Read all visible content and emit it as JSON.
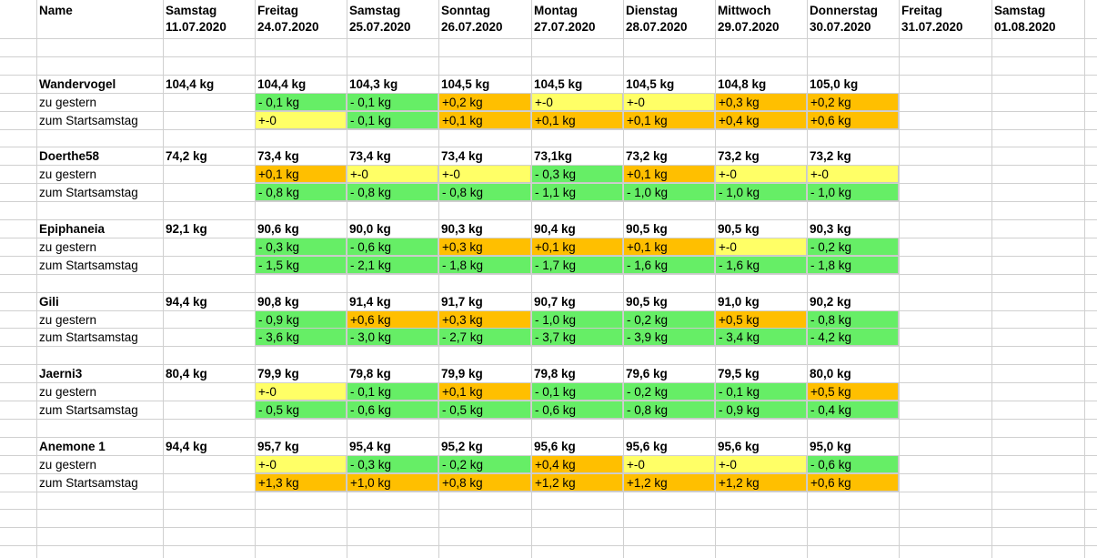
{
  "colors": {
    "green": "#66ee66",
    "orange": "#ffbf00",
    "yellow": "#ffff66",
    "gridline": "#d0d0d0"
  },
  "header": {
    "name_label": "Name",
    "days": [
      {
        "day": "Samstag",
        "date": "11.07.2020"
      },
      {
        "day": "Freitag",
        "date": "24.07.2020"
      },
      {
        "day": "Samstag",
        "date": "25.07.2020"
      },
      {
        "day": "Sonntag",
        "date": "26.07.2020"
      },
      {
        "day": "Montag",
        "date": "27.07.2020"
      },
      {
        "day": "Dienstag",
        "date": "28.07.2020"
      },
      {
        "day": "Mittwoch",
        "date": "29.07.2020"
      },
      {
        "day": "Donnerstag",
        "date": "30.07.2020"
      },
      {
        "day": "Freitag",
        "date": "31.07.2020"
      },
      {
        "day": "Samstag",
        "date": "01.08.2020"
      }
    ]
  },
  "rows": [
    {
      "type": "empty"
    },
    {
      "type": "empty"
    },
    {
      "type": "weight",
      "label": "Wandervogel",
      "cells": [
        "104,4 kg",
        "104,4 kg",
        "104,3 kg",
        "104,5 kg",
        "104,5 kg",
        "104,5 kg",
        "104,8 kg",
        "105,0 kg",
        "",
        ""
      ]
    },
    {
      "type": "delta",
      "label": "zu gestern",
      "cells": [
        "",
        "- 0,1 kg",
        "- 0,1 kg",
        "+0,2 kg",
        "+-0",
        "+-0",
        "+0,3 kg",
        "+0,2 kg",
        "",
        ""
      ],
      "fills": [
        "",
        "green",
        "green",
        "orange",
        "yellow",
        "yellow",
        "orange",
        "orange",
        "",
        ""
      ]
    },
    {
      "type": "delta",
      "label": "zum Startsamstag",
      "cells": [
        "",
        "+-0",
        "- 0,1 kg",
        "+0,1 kg",
        "+0,1 kg",
        "+0,1 kg",
        "+0,4 kg",
        "+0,6 kg",
        "",
        ""
      ],
      "fills": [
        "",
        "yellow",
        "green",
        "orange",
        "orange",
        "orange",
        "orange",
        "orange",
        "",
        ""
      ]
    },
    {
      "type": "empty"
    },
    {
      "type": "weight",
      "label": "Doerthe58",
      "cells": [
        "74,2 kg",
        "73,4 kg",
        "73,4 kg",
        " 73,4 kg",
        "73,1kg",
        "73,2 kg",
        "73,2 kg",
        "73,2 kg",
        "",
        ""
      ]
    },
    {
      "type": "delta",
      "label": "zu gestern",
      "cells": [
        "",
        "+0,1 kg",
        "+-0",
        "+-0",
        "- 0,3  kg",
        "+0,1 kg",
        "+-0",
        "+-0",
        "",
        ""
      ],
      "fills": [
        "",
        "orange",
        "yellow",
        "yellow",
        "green",
        "orange",
        "yellow",
        "yellow",
        "",
        ""
      ]
    },
    {
      "type": "delta",
      "label": "zum Startsamstag",
      "cells": [
        "",
        "- 0,8 kg",
        "- 0,8 kg",
        "- 0,8 kg",
        "- 1,1  kg",
        "- 1,0 kg",
        "- 1,0 kg",
        "- 1,0 kg",
        "",
        ""
      ],
      "fills": [
        "",
        "green",
        "green",
        "green",
        "green",
        "green",
        "green",
        "green",
        "",
        ""
      ]
    },
    {
      "type": "empty"
    },
    {
      "type": "weight",
      "label": "Epiphaneia",
      "cells": [
        "92,1 kg",
        "90,6 kg",
        "90,0 kg",
        " 90,3 kg",
        "90,4 kg",
        "90,5 kg",
        "90,5 kg",
        "90,3 kg",
        "",
        ""
      ]
    },
    {
      "type": "delta",
      "label": "zu gestern",
      "cells": [
        "",
        "- 0,3 kg",
        "- 0,6 kg",
        "+0,3 kg",
        "+0,1 kg",
        "+0,1 kg",
        "+-0",
        "- 0,2 kg",
        "",
        ""
      ],
      "fills": [
        "",
        "green",
        "green",
        "orange",
        "orange",
        "orange",
        "yellow",
        "green",
        "",
        ""
      ]
    },
    {
      "type": "delta",
      "label": "zum Startsamstag",
      "cells": [
        "",
        "- 1,5 kg",
        "- 2,1 kg",
        "- 1,8 kg",
        "- 1,7 kg",
        "- 1,6 kg",
        "- 1,6 kg",
        "- 1,8 kg",
        "",
        ""
      ],
      "fills": [
        "",
        "green",
        "green",
        "green",
        "green",
        "green",
        "green",
        "green",
        "",
        ""
      ]
    },
    {
      "type": "empty"
    },
    {
      "type": "weight",
      "label": "Gili",
      "cells": [
        "94,4 kg",
        "90,8 kg",
        "91,4 kg",
        " 91,7 kg",
        "90,7 kg",
        "90,5 kg",
        "91,0 kg",
        "90,2 kg",
        "",
        ""
      ]
    },
    {
      "type": "delta",
      "label": "zu gestern",
      "cells": [
        "",
        "- 0,9 kg",
        "+0,6 kg",
        "+0,3 kg",
        "- 1,0 kg",
        "- 0,2 kg",
        "+0,5 kg",
        "- 0,8 kg",
        "",
        ""
      ],
      "fills": [
        "",
        "green",
        "orange",
        "orange",
        "green",
        "green",
        "orange",
        "green",
        "",
        ""
      ]
    },
    {
      "type": "delta",
      "label": "zum Startsamstag",
      "cells": [
        "",
        "- 3,6 kg",
        "- 3,0 kg",
        "- 2,7 kg",
        "- 3,7 kg",
        "- 3,9 kg",
        "- 3,4 kg",
        "- 4,2 kg",
        "",
        ""
      ],
      "fills": [
        "",
        "green",
        "green",
        "green",
        "green",
        "green",
        "green",
        "green",
        "",
        ""
      ]
    },
    {
      "type": "empty"
    },
    {
      "type": "weight",
      "label": "Jaerni3",
      "cells": [
        "80,4 kg",
        "79,9 kg",
        "79,8 kg",
        " 79,9 kg",
        "79,8 kg",
        "79,6 kg",
        "79,5 kg",
        "80,0 kg",
        "",
        ""
      ]
    },
    {
      "type": "delta",
      "label": "zu gestern",
      "cells": [
        "",
        "+-0",
        "- 0,1 kg",
        "+0,1 kg",
        "- 0,1 kg",
        "- 0,2 kg",
        "- 0,1 kg",
        "+0,5 kg",
        "",
        ""
      ],
      "fills": [
        "",
        "yellow",
        "green",
        "orange",
        "green",
        "green",
        "green",
        "orange",
        "",
        ""
      ]
    },
    {
      "type": "delta",
      "label": "zum Startsamstag",
      "cells": [
        "",
        "- 0,5 kg",
        "- 0,6 kg",
        "- 0,5 kg",
        "- 0,6 kg",
        "- 0,8 kg",
        "- 0,9 kg",
        "- 0,4 kg",
        "",
        ""
      ],
      "fills": [
        "",
        "green",
        "green",
        "green",
        "green",
        "green",
        "green",
        "green",
        "",
        ""
      ]
    },
    {
      "type": "empty"
    },
    {
      "type": "weight",
      "label": "Anemone 1",
      "cells": [
        "94,4 kg",
        "95,7 kg",
        "95,4 kg",
        " 95,2 kg",
        "95,6 kg",
        "95,6 kg",
        "95,6 kg",
        "95,0 kg",
        "",
        ""
      ]
    },
    {
      "type": "delta",
      "label": "zu gestern",
      "cells": [
        "",
        "+-0",
        "- 0,3 kg",
        "- 0,2 kg",
        "+0,4 kg",
        "+-0",
        "+-0",
        "- 0,6 kg",
        "",
        ""
      ],
      "fills": [
        "",
        "yellow",
        "green",
        "green",
        "orange",
        "yellow",
        "yellow",
        "green",
        "",
        ""
      ]
    },
    {
      "type": "delta",
      "label": "zum Startsamstag",
      "cells": [
        "",
        "+1,3 kg",
        "+1,0 kg",
        "+0,8 kg",
        "+1,2 kg",
        "+1,2 kg",
        "+1,2 kg",
        "+0,6 kg",
        "",
        ""
      ],
      "fills": [
        "",
        "orange",
        "orange",
        "orange",
        "orange",
        "orange",
        "orange",
        "orange",
        "",
        ""
      ]
    },
    {
      "type": "empty"
    },
    {
      "type": "empty"
    }
  ]
}
